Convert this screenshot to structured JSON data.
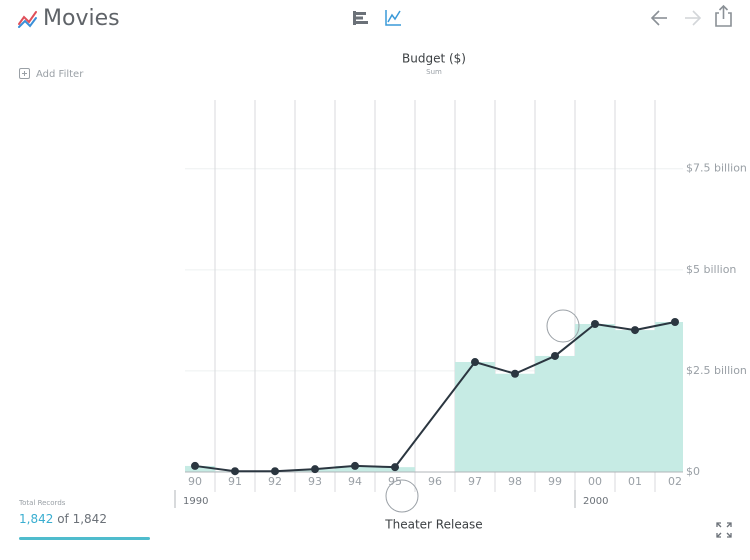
{
  "header": {
    "title": "Movies"
  },
  "toolbar": {
    "add_filter": "Add Filter"
  },
  "records": {
    "label": "Total Records",
    "shown": "1,842",
    "separator": "of",
    "total": "1,842"
  },
  "chart_data": {
    "type": "line",
    "title": "Budget ($)",
    "subtitle": "Sum",
    "x_label": "Theater Release",
    "x": [
      1990,
      1991,
      1992,
      1993,
      1994,
      1995,
      1997,
      1998,
      1999,
      2000,
      2001,
      2002
    ],
    "series": [
      {
        "color": "#c6ebe4",
        "style": "bar",
        "values": [
          0.15,
          0.02,
          0.02,
          0.07,
          0.15,
          0.12,
          2.72,
          2.43,
          2.87,
          3.66,
          3.51,
          3.71
        ]
      },
      {
        "color": "#2b3640",
        "style": "line",
        "values": [
          0.15,
          0.02,
          0.02,
          0.07,
          0.15,
          0.12,
          2.72,
          2.43,
          2.87,
          3.66,
          3.51,
          3.71
        ]
      }
    ],
    "xlim": [
      1989.75,
      2002.2
    ],
    "xticks": [
      {
        "value": 1990,
        "label": "90"
      },
      {
        "value": 1991,
        "label": "91"
      },
      {
        "value": 1992,
        "label": "92"
      },
      {
        "value": 1993,
        "label": "93"
      },
      {
        "value": 1994,
        "label": "94"
      },
      {
        "value": 1995,
        "label": "95"
      },
      {
        "value": 1996,
        "label": "96"
      },
      {
        "value": 1997,
        "label": "97"
      },
      {
        "value": 1998,
        "label": "98"
      },
      {
        "value": 1999,
        "label": "99"
      },
      {
        "value": 2000,
        "label": "00"
      },
      {
        "value": 2001,
        "label": "01"
      },
      {
        "value": 2002,
        "label": "02"
      }
    ],
    "x_major_ticks": [
      1990,
      2000
    ],
    "ylim": [
      0,
      9.2
    ],
    "yticks": [
      {
        "value": 0,
        "label": "$0"
      },
      {
        "value": 2.5,
        "label": "$2.5 billion"
      },
      {
        "value": 5,
        "label": "$5 billion"
      },
      {
        "value": 7.5,
        "label": "$7.5 billion"
      }
    ],
    "grid": true
  }
}
